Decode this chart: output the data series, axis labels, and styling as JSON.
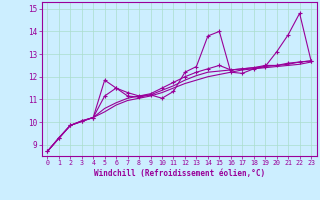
{
  "xlabel": "Windchill (Refroidissement éolien,°C)",
  "bg_color": "#cceeff",
  "grid_color": "#aaddcc",
  "line_color": "#990099",
  "xlim": [
    -0.5,
    23.5
  ],
  "ylim": [
    8.5,
    15.3
  ],
  "yticks": [
    9,
    10,
    11,
    12,
    13,
    14,
    15
  ],
  "xticks": [
    0,
    1,
    2,
    3,
    4,
    5,
    6,
    7,
    8,
    9,
    10,
    11,
    12,
    13,
    14,
    15,
    16,
    17,
    18,
    19,
    20,
    21,
    22,
    23
  ],
  "line1_x": [
    0,
    1,
    2,
    3,
    4,
    5,
    6,
    7,
    8,
    9,
    10,
    11,
    12,
    13,
    14,
    15,
    16,
    17,
    18,
    19,
    20,
    21,
    22,
    23
  ],
  "line1_y": [
    8.7,
    9.3,
    9.85,
    10.05,
    10.2,
    11.85,
    11.5,
    11.15,
    11.1,
    11.2,
    11.05,
    11.35,
    12.2,
    12.45,
    13.8,
    14.0,
    12.2,
    12.15,
    12.35,
    12.45,
    13.1,
    13.85,
    14.8,
    12.7
  ],
  "line2_x": [
    0,
    1,
    2,
    3,
    4,
    5,
    6,
    7,
    8,
    9,
    10,
    11,
    12,
    13,
    14,
    15,
    16,
    17,
    18,
    19,
    20,
    21,
    22,
    23
  ],
  "line2_y": [
    8.7,
    9.3,
    9.85,
    10.05,
    10.2,
    11.15,
    11.5,
    11.3,
    11.15,
    11.25,
    11.5,
    11.75,
    12.0,
    12.2,
    12.35,
    12.5,
    12.3,
    12.35,
    12.4,
    12.5,
    12.5,
    12.6,
    12.65,
    12.7
  ],
  "line3_x": [
    0,
    2,
    4,
    5,
    6,
    7,
    8,
    9,
    10,
    11,
    12,
    13,
    14,
    15,
    16,
    17,
    18,
    19,
    20,
    21,
    22,
    23
  ],
  "line3_y": [
    8.7,
    9.85,
    10.2,
    10.45,
    10.75,
    10.95,
    11.05,
    11.15,
    11.3,
    11.5,
    11.7,
    11.85,
    12.0,
    12.1,
    12.2,
    12.3,
    12.35,
    12.4,
    12.45,
    12.5,
    12.55,
    12.65
  ],
  "line4_x": [
    0,
    2,
    4,
    5,
    6,
    7,
    8,
    9,
    10,
    11,
    12,
    13,
    14,
    15,
    16,
    17,
    18,
    19,
    20,
    21,
    22,
    23
  ],
  "line4_y": [
    8.7,
    9.85,
    10.2,
    10.6,
    10.85,
    11.05,
    11.15,
    11.2,
    11.4,
    11.6,
    11.85,
    12.05,
    12.2,
    12.25,
    12.3,
    12.35,
    12.4,
    12.45,
    12.5,
    12.55,
    12.65,
    12.7
  ]
}
